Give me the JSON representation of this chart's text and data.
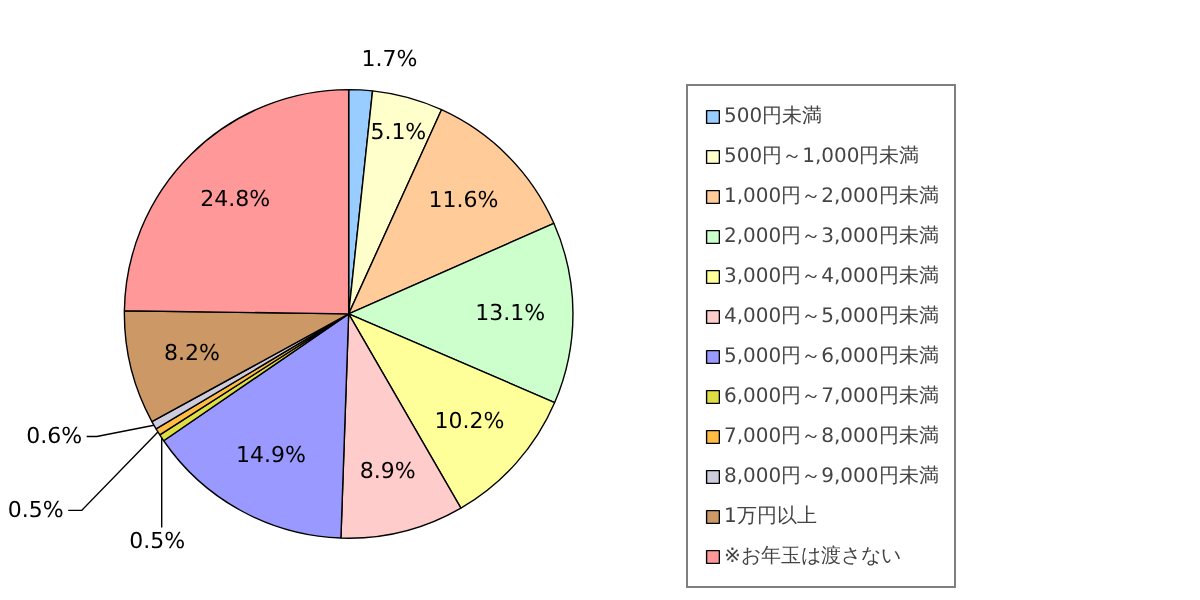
{
  "chart_data": {
    "type": "pie",
    "categories": [
      "500円未満",
      "500円～1,000円未満",
      "1,000円～2,000円未満",
      "2,000円～3,000円未満",
      "3,000円～4,000円未満",
      "4,000円～5,000円未満",
      "5,000円～6,000円未満",
      "6,000円～7,000円未満",
      "7,000円～8,000円未満",
      "8,000円～9,000円未満",
      "1万円以上",
      "※お年玉は渡さない"
    ],
    "values": [
      1.7,
      5.1,
      11.6,
      13.1,
      10.2,
      8.9,
      14.9,
      0.5,
      0.5,
      0.6,
      8.2,
      24.8
    ],
    "value_labels": [
      "1.7%",
      "5.1%",
      "11.6%",
      "13.1%",
      "10.2%",
      "8.9%",
      "14.9%",
      "0.5%",
      "0.5%",
      "0.6%",
      "8.2%",
      "24.8%"
    ],
    "colors": [
      "#99ccff",
      "#ffffcc",
      "#ffcc99",
      "#ccffcc",
      "#ffff99",
      "#ffcccc",
      "#9999ff",
      "#dddd44",
      "#ffbb44",
      "#ccccdd",
      "#cc9966",
      "#ff9999"
    ],
    "legend": "right"
  }
}
